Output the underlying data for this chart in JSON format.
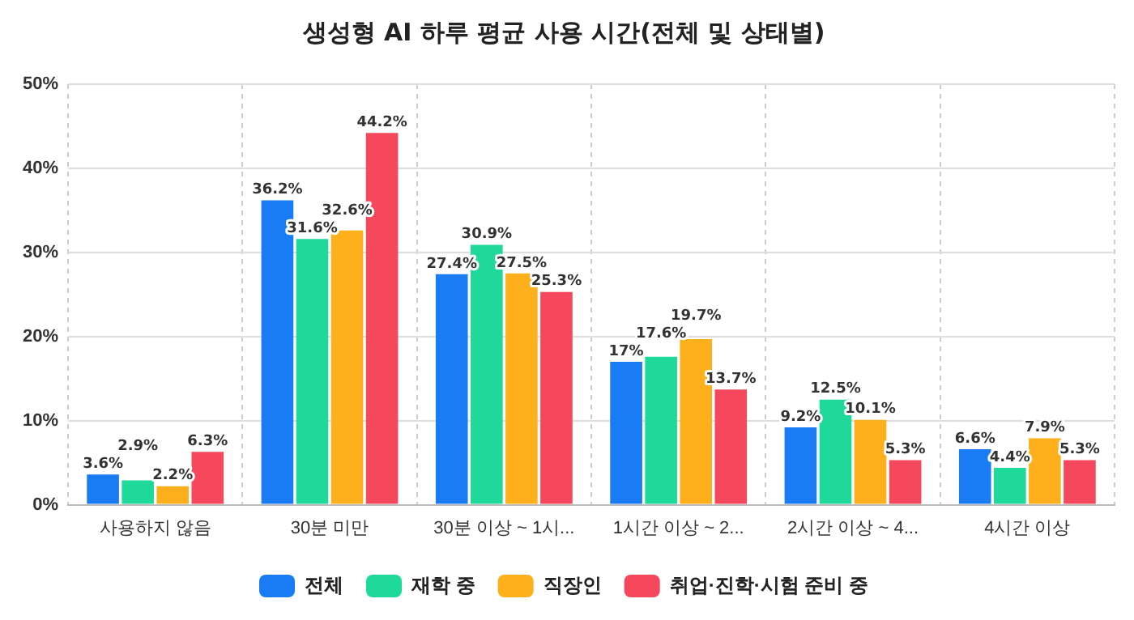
{
  "chart_data": {
    "type": "bar",
    "title": "생성형 AI 하루 평균 사용 시간(전체 및 상태별)",
    "categories": [
      "사용하지 않음",
      "30분 미만",
      "30분 이상 ~ 1시...",
      "1시간 이상 ~ 2...",
      "2시간 이상 ~ 4...",
      "4시간 이상"
    ],
    "series": [
      {
        "name": "전체",
        "color": "#1a7cf5",
        "values": [
          3.6,
          36.2,
          27.4,
          17,
          9.2,
          6.6
        ],
        "value_labels": [
          "3.6%",
          "36.2%",
          "27.4%",
          "17%",
          "9.2%",
          "6.6%"
        ]
      },
      {
        "name": "재학 중",
        "color": "#1fd99b",
        "values": [
          2.9,
          31.6,
          30.9,
          17.6,
          12.5,
          4.4
        ],
        "value_labels": [
          "2.9%",
          "31.6%",
          "30.9%",
          "17.6%",
          "12.5%",
          "4.4%"
        ]
      },
      {
        "name": "직장인",
        "color": "#fdb01b",
        "values": [
          2.2,
          32.6,
          27.5,
          19.7,
          10.1,
          7.9
        ],
        "value_labels": [
          "2.2%",
          "32.6%",
          "27.5%",
          "19.7%",
          "10.1%",
          "7.9%"
        ]
      },
      {
        "name": "취업·진학·시험 준비 중",
        "color": "#f5485d",
        "values": [
          6.3,
          44.2,
          25.3,
          13.7,
          5.3,
          5.3
        ],
        "value_labels": [
          "6.3%",
          "44.2%",
          "25.3%",
          "13.7%",
          "5.3%",
          "5.3%"
        ]
      }
    ],
    "ylim": [
      0,
      50
    ],
    "yticks": [
      {
        "value": 0,
        "label": "0%"
      },
      {
        "value": 10,
        "label": "10%"
      },
      {
        "value": 20,
        "label": "20%"
      },
      {
        "value": 30,
        "label": "30%"
      },
      {
        "value": 40,
        "label": "40%"
      },
      {
        "value": 50,
        "label": "50%"
      }
    ],
    "grid": true,
    "legend": "bottom"
  }
}
